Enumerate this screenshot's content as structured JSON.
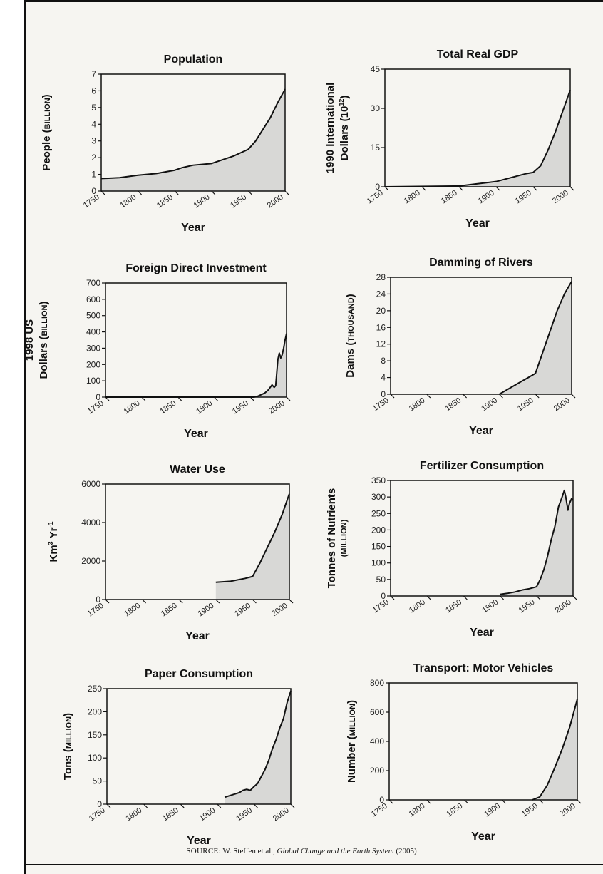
{
  "colors": {
    "fill": "#d8d8d6",
    "line": "#111111"
  },
  "source": {
    "label": "SOURCE:",
    "authors": "W. Steffen et al.,",
    "title": "Global Change and the Earth System",
    "year": "(2005)"
  },
  "chart_data": [
    {
      "id": "population",
      "type": "area",
      "title": "Population",
      "ylabel": "People (BILLION)",
      "xlabel": "Year",
      "xlim": [
        1750,
        2000
      ],
      "ylim": [
        0,
        7
      ],
      "xticks": [
        "1750",
        "1800",
        "1850",
        "1900",
        "1950",
        "2000"
      ],
      "yticks": [
        "0",
        "1",
        "2",
        "3",
        "4",
        "5",
        "6",
        "7"
      ],
      "x": [
        1750,
        1760,
        1775,
        1800,
        1825,
        1850,
        1860,
        1875,
        1900,
        1910,
        1920,
        1930,
        1940,
        1950,
        1960,
        1970,
        1980,
        1990,
        2000
      ],
      "y": [
        0.75,
        0.77,
        0.8,
        0.95,
        1.05,
        1.25,
        1.4,
        1.55,
        1.65,
        1.8,
        1.95,
        2.1,
        2.3,
        2.5,
        3.0,
        3.7,
        4.4,
        5.3,
        6.1
      ]
    },
    {
      "id": "gdp",
      "type": "area",
      "title": "Total Real GDP",
      "ylabel": "1990 International Dollars (10^12)",
      "xlabel": "Year",
      "xlim": [
        1750,
        2000
      ],
      "ylim": [
        0,
        45
      ],
      "xticks": [
        "1750",
        "1800",
        "1850",
        "1900",
        "1950",
        "2000"
      ],
      "yticks": [
        "0",
        "15",
        "30",
        "45"
      ],
      "x": [
        1750,
        1850,
        1870,
        1900,
        1920,
        1940,
        1950,
        1960,
        1970,
        1980,
        1990,
        2000
      ],
      "y": [
        0,
        0.3,
        1,
        2,
        3.5,
        5,
        5.5,
        8,
        14,
        21,
        29,
        37
      ]
    },
    {
      "id": "fdi",
      "type": "area",
      "title": "Foreign Direct Investment",
      "ylabel": "1998 US Dollars (BILLION)",
      "xlabel": "Year",
      "xlim": [
        1750,
        2000
      ],
      "ylim": [
        0,
        700
      ],
      "xticks": [
        "1750",
        "1800",
        "1850",
        "1900",
        "1950",
        "2000"
      ],
      "yticks": [
        "0",
        "100",
        "200",
        "300",
        "400",
        "500",
        "600",
        "700"
      ],
      "x": [
        1750,
        1955,
        1960,
        1970,
        1975,
        1980,
        1983,
        1985,
        1986,
        1988,
        1990,
        1992,
        1994,
        1996,
        1998,
        2000
      ],
      "y": [
        0,
        0,
        5,
        25,
        45,
        75,
        60,
        70,
        120,
        230,
        270,
        240,
        260,
        300,
        350,
        390
      ]
    },
    {
      "id": "dams",
      "type": "area",
      "title": "Damming of Rivers",
      "ylabel": "Dams (THOUSAND)",
      "xlabel": "Year",
      "xlim": [
        1750,
        2000
      ],
      "ylim": [
        0,
        28
      ],
      "xticks": [
        "1750",
        "1800",
        "1850",
        "1900",
        "1950",
        "2000"
      ],
      "yticks": [
        "0",
        "4",
        "8",
        "12",
        "16",
        "20",
        "24",
        "28"
      ],
      "x": [
        1900,
        1910,
        1920,
        1930,
        1940,
        1950,
        1960,
        1970,
        1980,
        1990,
        2000
      ],
      "y": [
        0,
        1,
        2,
        3,
        4,
        5,
        10,
        15,
        20,
        24,
        27
      ]
    },
    {
      "id": "water",
      "type": "area",
      "title": "Water Use",
      "ylabel": "Km3 Yr-1",
      "xlabel": "Year",
      "xlim": [
        1750,
        2000
      ],
      "ylim": [
        0,
        6000
      ],
      "xticks": [
        "1750",
        "1800",
        "1850",
        "1900",
        "1950",
        "2000"
      ],
      "yticks": [
        "0",
        "2000",
        "4000",
        "6000"
      ],
      "x": [
        1900,
        1920,
        1940,
        1950,
        1960,
        1970,
        1980,
        1990,
        2000
      ],
      "y": [
        900,
        950,
        1100,
        1200,
        1900,
        2700,
        3500,
        4400,
        5500
      ]
    },
    {
      "id": "fertilizer",
      "type": "area",
      "title": "Fertilizer Consumption",
      "ylabel": "Tonnes of Nutrients (MILLION)",
      "xlabel": "Year",
      "xlim": [
        1750,
        2000
      ],
      "ylim": [
        0,
        350
      ],
      "xticks": [
        "1750",
        "1800",
        "1850",
        "1900",
        "1950",
        "2000"
      ],
      "yticks": [
        "0",
        "50",
        "100",
        "150",
        "200",
        "250",
        "300",
        "350"
      ],
      "x": [
        1900,
        1910,
        1920,
        1930,
        1940,
        1950,
        1955,
        1960,
        1965,
        1970,
        1975,
        1980,
        1985,
        1988,
        1990,
        1993,
        1995,
        1998,
        2000
      ],
      "y": [
        5,
        8,
        12,
        18,
        22,
        28,
        50,
        80,
        120,
        170,
        210,
        270,
        300,
        320,
        300,
        260,
        280,
        295,
        290
      ]
    },
    {
      "id": "paper",
      "type": "area",
      "title": "Paper Consumption",
      "ylabel": "Tons (MILLION)",
      "xlabel": "Year",
      "xlim": [
        1750,
        2000
      ],
      "ylim": [
        0,
        250
      ],
      "xticks": [
        "1750",
        "1800",
        "1850",
        "1900",
        "1950",
        "2000"
      ],
      "yticks": [
        "0",
        "50",
        "100",
        "150",
        "200",
        "250"
      ],
      "x": [
        1910,
        1920,
        1930,
        1935,
        1940,
        1945,
        1950,
        1955,
        1960,
        1965,
        1970,
        1975,
        1980,
        1985,
        1990,
        1995,
        2000
      ],
      "y": [
        15,
        20,
        25,
        30,
        32,
        30,
        38,
        45,
        60,
        75,
        95,
        120,
        140,
        165,
        185,
        220,
        245
      ]
    },
    {
      "id": "vehicles",
      "type": "area",
      "title": "Transport: Motor Vehicles",
      "ylabel": "Number (MILLION)",
      "xlabel": "Year",
      "xlim": [
        1750,
        2000
      ],
      "ylim": [
        0,
        800
      ],
      "xticks": [
        "1750",
        "1800",
        "1850",
        "1900",
        "1950",
        "2000"
      ],
      "yticks": [
        "0",
        "200",
        "400",
        "600",
        "800"
      ],
      "x": [
        1940,
        1950,
        1960,
        1970,
        1980,
        1990,
        2000
      ],
      "y": [
        0,
        20,
        100,
        220,
        350,
        500,
        690
      ]
    }
  ]
}
